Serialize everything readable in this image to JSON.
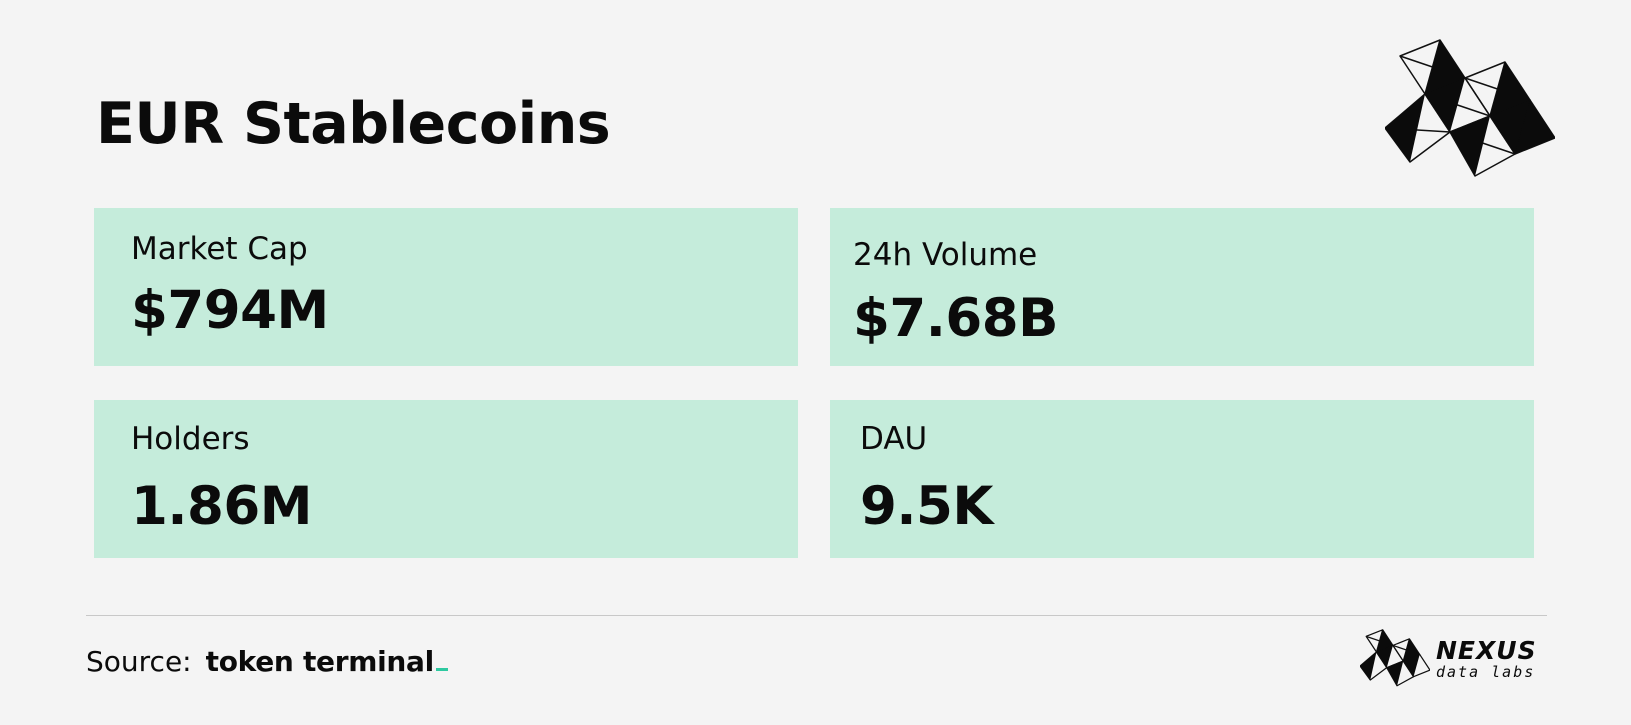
{
  "header": {
    "title": "EUR Stablecoins",
    "logo_icon": "nexus-geometric-logo-icon"
  },
  "metrics": [
    {
      "label": "Market Cap",
      "value": "$794M"
    },
    {
      "label": "24h Volume",
      "value": "$7.68B"
    },
    {
      "label": "Holders",
      "value": "1.86M"
    },
    {
      "label": "DAU",
      "value": "9.5K"
    }
  ],
  "footer": {
    "source_label": "Source:",
    "source_brand": "token terminal",
    "brand_name": "NEXUS",
    "brand_sub": "data labs"
  },
  "colors": {
    "background": "#f4f4f4",
    "card": "#c5ecdb",
    "accent": "#2ec9a0",
    "text": "#0b0b0b"
  }
}
